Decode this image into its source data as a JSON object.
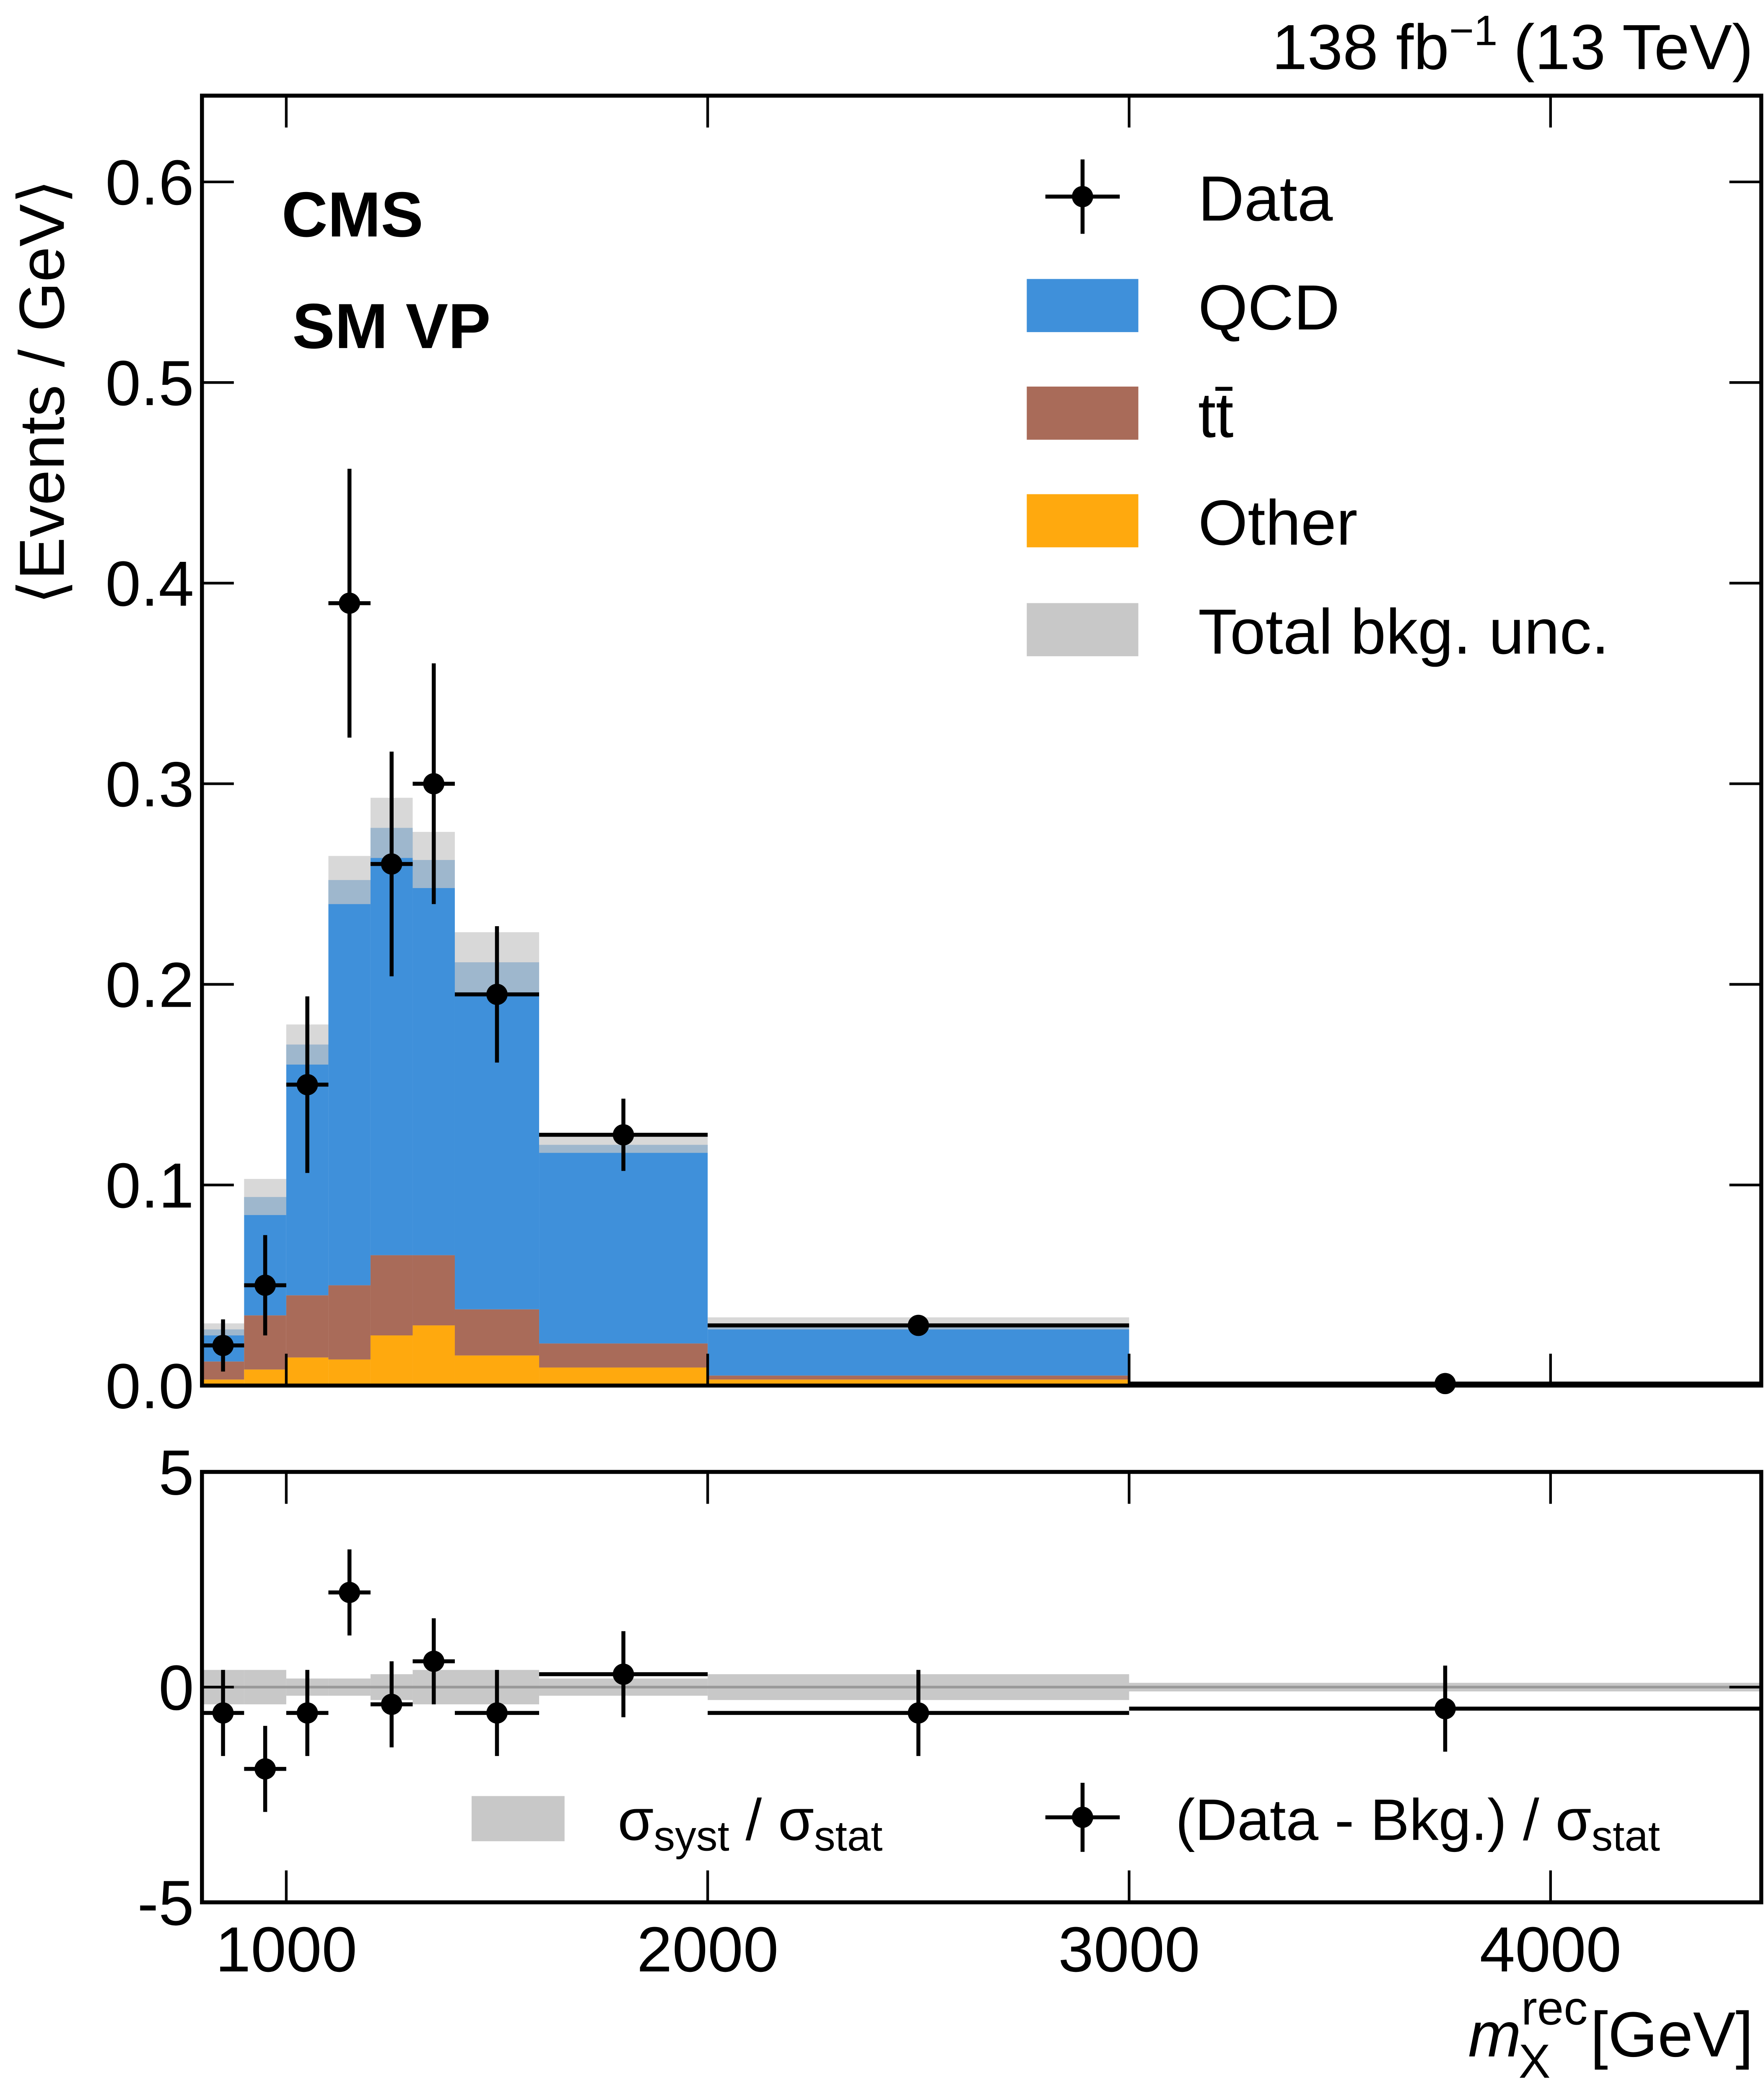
{
  "chart_data": [
    {
      "type": "histogram",
      "lumi_text": "138 fb",
      "lumi_exponent": "−1",
      "energy_text": "(13 TeV)",
      "experiment": "CMS",
      "subtitle": "SM VP",
      "ylabel": "⟨Events / GeV⟩",
      "bins": [
        800,
        900,
        1000,
        1100,
        1200,
        1300,
        1400,
        1600,
        2000,
        3000,
        4500
      ],
      "xlim": [
        800,
        4500
      ],
      "xticks": [
        1000,
        2000,
        3000,
        4000
      ],
      "ylim": [
        0,
        0.643
      ],
      "yticks": [
        {
          "value": 0,
          "label": "0.0"
        },
        0.1,
        0.2,
        0.3,
        0.4,
        0.5,
        0.6
      ],
      "series": [
        {
          "name": "QCD",
          "color": "#3f90da",
          "values": [
            0.016,
            0.059,
            0.125,
            0.202,
            0.213,
            0.197,
            0.173,
            0.099,
            0.026,
            0.0005
          ]
        },
        {
          "name": "tt̄",
          "color": "#a96b59",
          "values": [
            0.009,
            0.027,
            0.031,
            0.037,
            0.04,
            0.035,
            0.023,
            0.012,
            0.002,
            0.0003
          ]
        },
        {
          "name": "Other",
          "color": "#ffa90e",
          "values": [
            0.003,
            0.008,
            0.014,
            0.013,
            0.025,
            0.03,
            0.015,
            0.009,
            0.003,
            0.0002
          ]
        }
      ],
      "uncertainty": {
        "name": "Total bkg. unc.",
        "color": "#c8c8c8",
        "values": [
          0.003,
          0.009,
          0.01,
          0.012,
          0.015,
          0.014,
          0.015,
          0.004,
          0.003,
          0.0005
        ]
      },
      "data": {
        "name": "Data",
        "color": "#000000",
        "values": [
          0.02,
          0.05,
          0.15,
          0.39,
          0.26,
          0.3,
          0.195,
          0.125,
          0.03,
          0.001
        ],
        "errors": [
          0.013,
          0.025,
          0.044,
          0.067,
          0.056,
          0.06,
          0.034,
          0.018,
          0.004,
          0.0005
        ]
      }
    },
    {
      "type": "ratio",
      "xlabel_var": "m",
      "xlabel_sup": "rec",
      "xlabel_sub": "X",
      "xlabel_unit": "[GeV]",
      "bins": [
        800,
        900,
        1000,
        1100,
        1200,
        1300,
        1400,
        1600,
        2000,
        3000,
        4500
      ],
      "xlim": [
        800,
        4500
      ],
      "xticks": [
        1000,
        2000,
        3000,
        4000
      ],
      "ylim": [
        -5,
        5
      ],
      "yticks": [
        -5,
        0,
        5
      ],
      "band": {
        "label_parts": [
          "σ",
          "syst",
          " / σ",
          "stat"
        ],
        "color": "#c8c8c8",
        "values": [
          0.4,
          0.4,
          0.2,
          0.2,
          0.3,
          0.4,
          0.4,
          0.2,
          0.3,
          0.1
        ]
      },
      "points": {
        "label_parts": [
          "(Data - Bkg.) / σ",
          "stat"
        ],
        "color": "#000000",
        "values": [
          -0.6,
          -1.9,
          -0.6,
          2.2,
          -0.4,
          0.6,
          -0.6,
          0.3,
          -0.6,
          -0.5
        ],
        "errors": [
          1,
          1,
          1,
          1,
          1,
          1,
          1,
          1,
          1,
          1
        ]
      }
    }
  ]
}
